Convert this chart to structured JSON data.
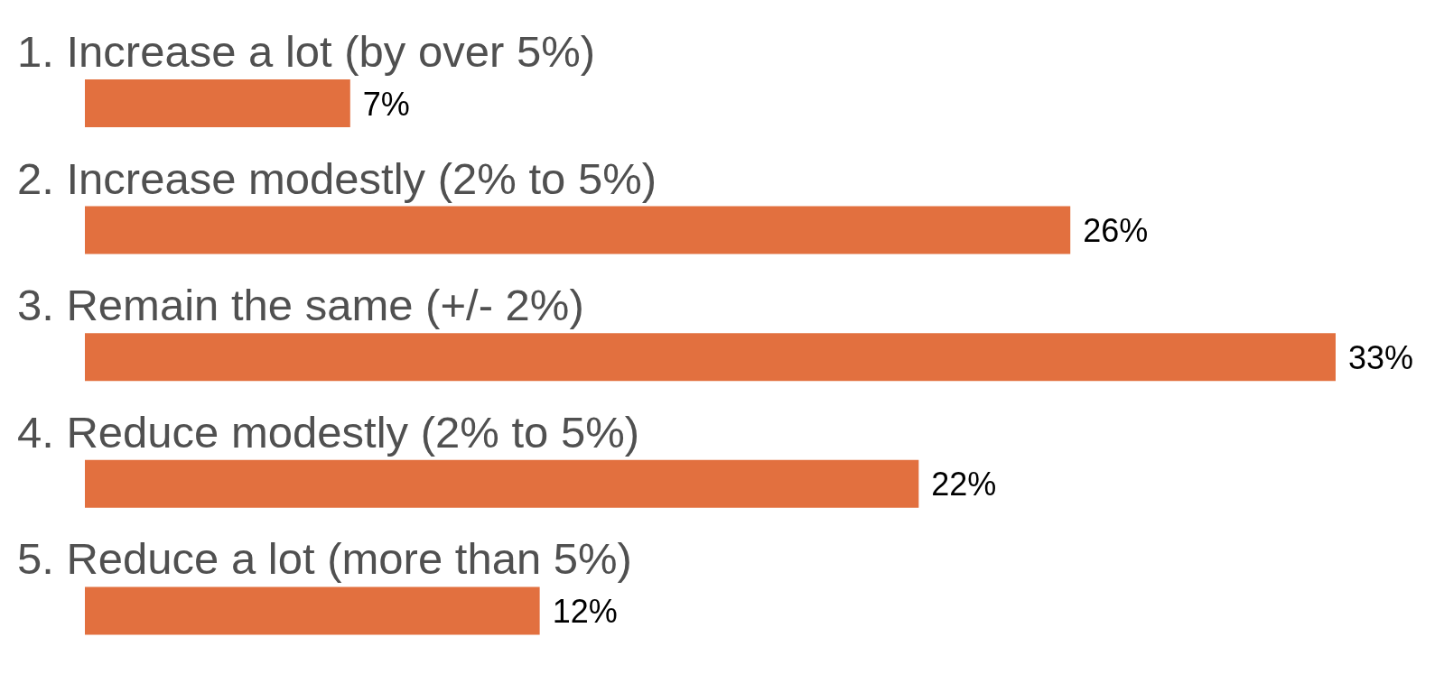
{
  "chart_data": {
    "type": "bar",
    "orientation": "horizontal",
    "categories": [
      "1. Increase a lot (by over 5%)",
      "2. Increase modestly (2% to 5%)",
      "3. Remain the same (+/- 2%)",
      "4. Reduce modestly (2% to 5%)",
      "5. Reduce a lot (more than 5%)"
    ],
    "values": [
      7,
      26,
      33,
      22,
      12
    ],
    "value_labels": [
      "7%",
      "26%",
      "33%",
      "22%",
      "12%"
    ],
    "color": "#e2703f"
  }
}
